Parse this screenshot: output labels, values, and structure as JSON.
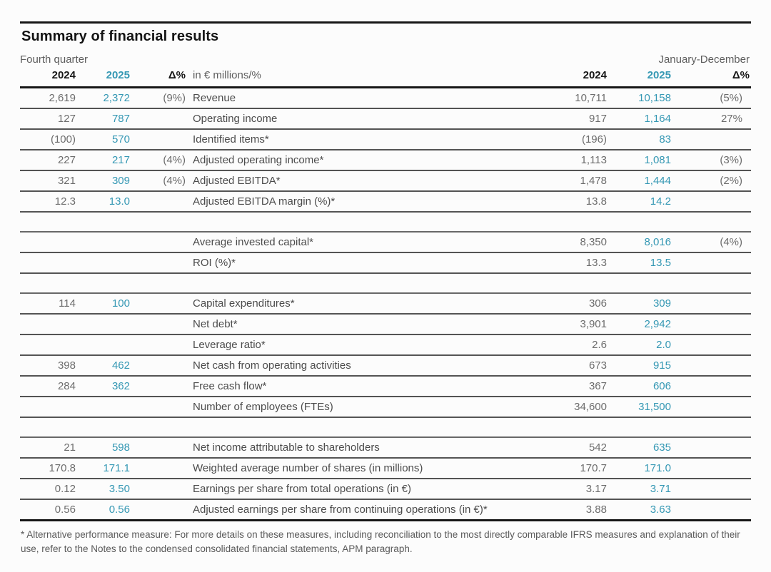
{
  "title": "Summary of financial results",
  "colors": {
    "accent": "#3598B4",
    "rule_dark": "#161616",
    "rule_row": "#545454"
  },
  "table": {
    "left_period": "Fourth quarter",
    "right_period": "January-December",
    "unit_label": "in € millions/%",
    "col_2024": "2024",
    "col_2025": "2025",
    "col_delta": "Δ%",
    "rows": [
      {
        "fq2024": "2,619",
        "fq2025": "2,372",
        "fqd": "(9%)",
        "label": "Revenue",
        "jd2024": "10,711",
        "jd2025": "10,158",
        "jdd": "(5%)"
      },
      {
        "fq2024": "127",
        "fq2025": "787",
        "fqd": "",
        "label": "Operating income",
        "jd2024": "917",
        "jd2025": "1,164",
        "jdd": "27%"
      },
      {
        "fq2024": "(100)",
        "fq2025": "570",
        "fqd": "",
        "label": "Identified items*",
        "jd2024": "(196)",
        "jd2025": "83",
        "jdd": ""
      },
      {
        "fq2024": "227",
        "fq2025": "217",
        "fqd": "(4%)",
        "label": "Adjusted operating income*",
        "jd2024": "1,113",
        "jd2025": "1,081",
        "jdd": "(3%)"
      },
      {
        "fq2024": "321",
        "fq2025": "309",
        "fqd": "(4%)",
        "label": "Adjusted EBITDA*",
        "jd2024": "1,478",
        "jd2025": "1,444",
        "jdd": "(2%)"
      },
      {
        "fq2024": "12.3",
        "fq2025": "13.0",
        "fqd": "",
        "label": "Adjusted EBITDA margin (%)*",
        "jd2024": "13.8",
        "jd2025": "14.2",
        "jdd": ""
      },
      {
        "type": "spacer"
      },
      {
        "fq2024": "",
        "fq2025": "",
        "fqd": "",
        "label": "Average invested capital*",
        "jd2024": "8,350",
        "jd2025": "8,016",
        "jdd": "(4%)"
      },
      {
        "fq2024": "",
        "fq2025": "",
        "fqd": "",
        "label": "ROI (%)*",
        "jd2024": "13.3",
        "jd2025": "13.5",
        "jdd": ""
      },
      {
        "type": "spacer"
      },
      {
        "fq2024": "114",
        "fq2025": "100",
        "fqd": "",
        "label": "Capital expenditures*",
        "jd2024": "306",
        "jd2025": "309",
        "jdd": ""
      },
      {
        "fq2024": "",
        "fq2025": "",
        "fqd": "",
        "label": "Net debt*",
        "jd2024": "3,901",
        "jd2025": "2,942",
        "jdd": ""
      },
      {
        "fq2024": "",
        "fq2025": "",
        "fqd": "",
        "label": "Leverage ratio*",
        "jd2024": "2.6",
        "jd2025": "2.0",
        "jdd": ""
      },
      {
        "fq2024": "398",
        "fq2025": "462",
        "fqd": "",
        "label": "Net cash from operating activities",
        "jd2024": "673",
        "jd2025": "915",
        "jdd": ""
      },
      {
        "fq2024": "284",
        "fq2025": "362",
        "fqd": "",
        "label": "Free cash flow*",
        "jd2024": "367",
        "jd2025": "606",
        "jdd": ""
      },
      {
        "fq2024": "",
        "fq2025": "",
        "fqd": "",
        "label": "Number of employees (FTEs)",
        "jd2024": "34,600",
        "jd2025": "31,500",
        "jdd": ""
      },
      {
        "type": "spacer"
      },
      {
        "fq2024": "21",
        "fq2025": "598",
        "fqd": "",
        "label": "Net income attributable to shareholders",
        "jd2024": "542",
        "jd2025": "635",
        "jdd": ""
      },
      {
        "fq2024": "170.8",
        "fq2025": "171.1",
        "fqd": "",
        "label": "Weighted average number of shares (in millions)",
        "jd2024": "170.7",
        "jd2025": "171.0",
        "jdd": ""
      },
      {
        "fq2024": "0.12",
        "fq2025": "3.50",
        "fqd": "",
        "label": "Earnings per share from total operations (in €)",
        "jd2024": "3.17",
        "jd2025": "3.71",
        "jdd": ""
      },
      {
        "fq2024": "0.56",
        "fq2025": "0.56",
        "fqd": "",
        "label": "Adjusted earnings per share from continuing operations (in €)*",
        "jd2024": "3.88",
        "jd2025": "3.63",
        "jdd": ""
      }
    ]
  },
  "footnote": "* Alternative performance measure: For more details on these measures, including reconciliation to the most directly comparable IFRS measures and explanation of their use, refer to the Notes to the condensed consolidated financial statements, APM paragraph."
}
